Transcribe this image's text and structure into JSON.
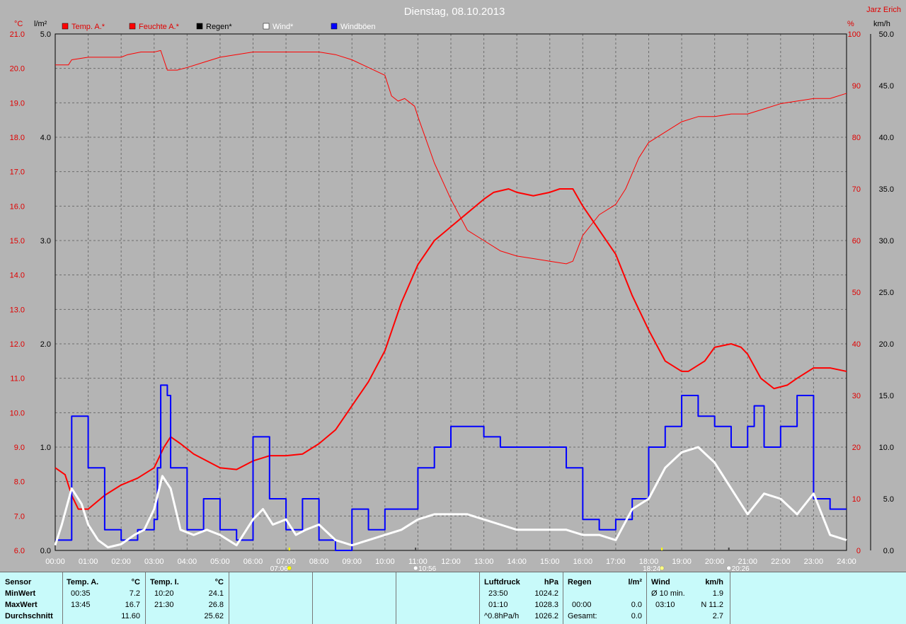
{
  "header": {
    "title": "Dienstag, 08.10.2013",
    "author": "Jarz Erich"
  },
  "axes": {
    "left1_unit": "°C",
    "left2_unit": "l/m²",
    "right1_unit": "%",
    "right2_unit": "km/h",
    "left1_ticks": [
      "21.0",
      "20.0",
      "19.0",
      "18.0",
      "17.0",
      "16.0",
      "15.0",
      "14.0",
      "13.0",
      "12.0",
      "11.0",
      "10.0",
      "9.0",
      "8.0",
      "7.0",
      "6.0"
    ],
    "left2_ticks": [
      "5.0",
      "4.0",
      "3.0",
      "2.0",
      "1.0",
      "0.0"
    ],
    "right1_ticks": [
      "100",
      "90",
      "80",
      "70",
      "60",
      "50",
      "40",
      "30",
      "20",
      "10",
      "0"
    ],
    "right2_ticks": [
      "50.0",
      "45.0",
      "40.0",
      "35.0",
      "30.0",
      "25.0",
      "20.0",
      "15.0",
      "10.0",
      "5.0",
      "0.0"
    ],
    "x_ticks": [
      "00:00",
      "01:00",
      "02:00",
      "03:00",
      "04:00",
      "05:00",
      "06:00",
      "07:00",
      "08:00",
      "09:00",
      "10:00",
      "11:00",
      "12:00",
      "13:00",
      "14:00",
      "15:00",
      "16:00",
      "17:00",
      "18:00",
      "19:00",
      "20:00",
      "21:00",
      "22:00",
      "23:00",
      "24:00"
    ]
  },
  "legend": [
    {
      "label": "Temp. A.*",
      "color": "#ff0000",
      "text_color": "#e00000"
    },
    {
      "label": "Feuchte A.*",
      "color": "#ff0000",
      "text_color": "#e00000"
    },
    {
      "label": "Regen*",
      "color": "#000000",
      "text_color": "#000000"
    },
    {
      "label": "Wind*",
      "color": "#ffffff",
      "text_color": "#ffffff"
    },
    {
      "label": "Windböen",
      "color": "#0000ff",
      "text_color": "#ffffff"
    }
  ],
  "astro": [
    {
      "time": "07:06",
      "hour": 7.1,
      "kind": "sunrise"
    },
    {
      "time": "10:56",
      "hour": 10.93,
      "kind": "moonrise"
    },
    {
      "time": "18:24",
      "hour": 18.4,
      "kind": "sunset"
    },
    {
      "time": "20:26",
      "hour": 20.43,
      "kind": "moonset"
    }
  ],
  "colors": {
    "plot_bg": "#b4b4b4",
    "temp": "#ff0000",
    "humidity": "#ff0000",
    "wind": "#ffffff",
    "gusts": "#0000ff",
    "table_bg": "#c8fafa"
  },
  "chart_data": {
    "type": "line",
    "title": "Dienstag, 08.10.2013",
    "x_range_hours": [
      0,
      24
    ],
    "ylim_temp": [
      6.0,
      21.0
    ],
    "ylim_rain": [
      0.0,
      5.0
    ],
    "ylim_humidity": [
      0,
      100
    ],
    "ylim_wind": [
      0.0,
      50.0
    ],
    "grid": true,
    "series": [
      {
        "name": "Temp. A.*",
        "unit": "°C",
        "axis": "temp",
        "width": 2,
        "x": [
          0,
          0.3,
          0.5,
          0.7,
          1.0,
          1.5,
          2.0,
          2.5,
          3.0,
          3.3,
          3.5,
          3.8,
          4.2,
          5.0,
          5.5,
          6.0,
          6.5,
          7.0,
          7.5,
          8.0,
          8.5,
          9.0,
          9.5,
          10.0,
          10.5,
          11.0,
          11.5,
          12.0,
          12.5,
          13.0,
          13.3,
          13.75,
          14.0,
          14.5,
          15.0,
          15.3,
          15.7,
          16.0,
          16.5,
          17.0,
          17.5,
          18.0,
          18.5,
          19.0,
          19.2,
          19.7,
          20.0,
          20.5,
          20.8,
          21.0,
          21.4,
          21.8,
          22.2,
          22.5,
          23.0,
          23.5,
          24.0
        ],
        "values": [
          8.4,
          8.2,
          7.6,
          7.2,
          7.2,
          7.6,
          7.9,
          8.1,
          8.4,
          9.0,
          9.3,
          9.1,
          8.8,
          8.4,
          8.35,
          8.6,
          8.75,
          8.75,
          8.8,
          9.1,
          9.5,
          10.2,
          10.9,
          11.8,
          13.2,
          14.3,
          15.0,
          15.4,
          15.8,
          16.2,
          16.4,
          16.5,
          16.4,
          16.3,
          16.4,
          16.5,
          16.5,
          16.0,
          15.3,
          14.6,
          13.4,
          12.4,
          11.5,
          11.2,
          11.2,
          11.5,
          11.9,
          12.0,
          11.9,
          11.7,
          11.0,
          10.7,
          10.8,
          11.0,
          11.3,
          11.3,
          11.2
        ]
      },
      {
        "name": "Feuchte A.*",
        "unit": "%",
        "axis": "humidity",
        "width": 1,
        "x": [
          0,
          0.4,
          0.5,
          1.0,
          1.5,
          2.0,
          2.2,
          2.6,
          3.0,
          3.2,
          3.4,
          3.7,
          4.0,
          4.5,
          5.0,
          6.0,
          7.0,
          8.0,
          8.5,
          9.0,
          9.5,
          10.0,
          10.2,
          10.4,
          10.6,
          10.9,
          11.0,
          11.5,
          12.0,
          12.5,
          13.0,
          13.5,
          14.0,
          14.5,
          15.0,
          15.5,
          15.7,
          16.0,
          16.5,
          17.0,
          17.3,
          17.7,
          18.0,
          18.5,
          19.0,
          19.5,
          20.0,
          20.5,
          21.0,
          21.5,
          22.0,
          22.5,
          23.0,
          23.5,
          24.0
        ],
        "values": [
          94,
          94,
          95,
          95.5,
          95.5,
          95.5,
          96,
          96.5,
          96.5,
          96.8,
          93,
          93,
          93.5,
          94.5,
          95.5,
          96.5,
          96.5,
          96.5,
          96,
          95,
          93.5,
          92,
          88,
          87,
          87.5,
          86,
          84,
          75,
          68,
          62,
          60,
          58,
          57,
          56.5,
          56,
          55.5,
          56,
          61,
          65,
          67,
          70,
          76,
          79,
          81,
          83,
          84,
          84,
          84.5,
          84.5,
          85.5,
          86.5,
          87,
          87.5,
          87.5,
          88.5
        ]
      },
      {
        "name": "Wind*",
        "unit": "km/h",
        "axis": "wind",
        "width": 3,
        "x": [
          0,
          0.2,
          0.5,
          0.8,
          1.0,
          1.3,
          1.6,
          2.0,
          2.4,
          2.7,
          3.0,
          3.25,
          3.5,
          3.8,
          4.2,
          4.6,
          5.0,
          5.5,
          6.0,
          6.3,
          6.6,
          7.0,
          7.3,
          7.6,
          8.0,
          8.5,
          9.0,
          9.5,
          10.0,
          10.5,
          11.0,
          11.5,
          12.0,
          12.5,
          13.0,
          13.5,
          14.0,
          14.5,
          15.0,
          15.5,
          16.0,
          16.5,
          17.0,
          17.5,
          18.0,
          18.5,
          19.0,
          19.5,
          20.0,
          20.5,
          21.0,
          21.5,
          22.0,
          22.5,
          23.0,
          23.5,
          24.0
        ],
        "values": [
          0.5,
          2.5,
          6,
          4.5,
          2.5,
          1,
          0.3,
          0.6,
          1.5,
          2,
          4,
          7.2,
          6,
          2,
          1.5,
          2,
          1.5,
          0.5,
          3,
          4,
          2.5,
          3,
          1.5,
          2,
          2.5,
          1,
          0.5,
          1,
          1.5,
          2,
          3,
          3.5,
          3.5,
          3.5,
          3,
          2.5,
          2,
          2,
          2,
          2,
          1.5,
          1.5,
          1,
          4,
          5,
          8,
          9.5,
          10,
          8.5,
          6,
          3.5,
          5.5,
          5,
          3.5,
          5.5,
          1.5,
          1
        ]
      },
      {
        "name": "Windböen",
        "unit": "km/h",
        "axis": "wind",
        "width": 2,
        "x": [
          0,
          0.5,
          1.0,
          1.5,
          2.0,
          2.5,
          3.0,
          3.1,
          3.2,
          3.4,
          3.5,
          4.0,
          4.5,
          5.0,
          5.5,
          6.0,
          6.5,
          7.0,
          7.5,
          8.0,
          8.5,
          9.0,
          9.5,
          10.0,
          10.5,
          11.0,
          11.5,
          12.0,
          12.5,
          13.0,
          13.5,
          14.0,
          14.5,
          15.0,
          15.5,
          16.0,
          16.5,
          17.0,
          17.5,
          18.0,
          18.5,
          19.0,
          19.5,
          20.0,
          20.5,
          21.0,
          21.2,
          21.5,
          22.0,
          22.5,
          23.0,
          23.5,
          24.0
        ],
        "values": [
          1,
          13,
          8,
          2,
          1,
          2,
          3,
          8,
          16,
          15,
          8,
          2,
          5,
          2,
          1,
          11,
          5,
          2,
          5,
          1,
          0,
          4,
          2,
          4,
          4,
          8,
          10,
          12,
          12,
          11,
          10,
          10,
          10,
          10,
          8,
          3,
          2,
          3,
          5,
          10,
          12,
          15,
          13,
          12,
          10,
          12,
          14,
          10,
          12,
          15,
          5,
          4,
          4
        ]
      },
      {
        "name": "Regen*",
        "unit": "l/m²",
        "axis": "rain",
        "width": 1,
        "x": [
          0,
          24
        ],
        "values": [
          0,
          0
        ]
      }
    ]
  },
  "table": {
    "sensor": {
      "header": "Sensor",
      "rows": [
        "MinWert",
        "MaxWert",
        "Durchschnitt"
      ]
    },
    "temp_a": {
      "header": "Temp. A.",
      "unit": "°C",
      "rows": [
        {
          "time": "00:35",
          "value": "7.2"
        },
        {
          "time": "13:45",
          "value": "16.7"
        },
        {
          "time": "",
          "value": "11.60"
        }
      ]
    },
    "temp_i": {
      "header": "Temp. I.",
      "unit": "°C",
      "rows": [
        {
          "time": "10:20",
          "value": "24.1"
        },
        {
          "time": "21:30",
          "value": "26.8"
        },
        {
          "time": "",
          "value": "25.62"
        }
      ]
    },
    "luftdruck": {
      "header": "Luftdruck",
      "unit": "hPa",
      "rows": [
        {
          "time": "23:50",
          "value": "1024.2"
        },
        {
          "time": "01:10",
          "value": "1028.3"
        },
        {
          "time": "^0.8hPa/h",
          "value": "1026.2"
        }
      ]
    },
    "regen": {
      "header": "Regen",
      "unit": "l/m²",
      "rows": [
        {
          "time": "",
          "value": ""
        },
        {
          "time": "00:00",
          "value": "0.0"
        },
        {
          "time": "Gesamt:",
          "value": "0.0"
        }
      ],
      "first_value": "0.0"
    },
    "wind": {
      "header": "Wind",
      "unit": "km/h",
      "rows": [
        {
          "time": "Ø 10 min.",
          "value": "1.9"
        },
        {
          "time": "03:10",
          "value": "N 11.2"
        },
        {
          "time": "",
          "value": "2.7"
        }
      ]
    }
  }
}
